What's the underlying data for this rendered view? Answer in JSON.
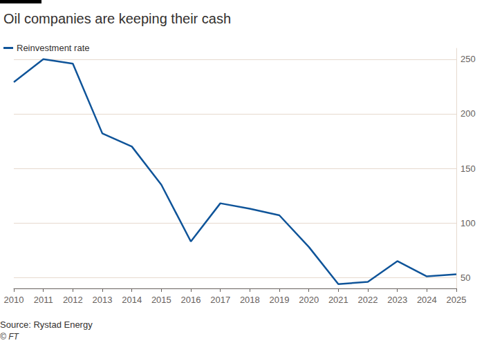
{
  "chart_data": {
    "type": "line",
    "title": "Oil companies are keeping their cash",
    "annotations": [
      "Source: Rystad Energy",
      "© FT"
    ],
    "categories": [
      "2010",
      "2011",
      "2012",
      "2013",
      "2014",
      "2015",
      "2016",
      "2017",
      "2018",
      "2019",
      "2020",
      "2021",
      "2022",
      "2023",
      "2024",
      "2025"
    ],
    "series": [
      {
        "name": "Reinvestment rate",
        "color": "#0f5499",
        "values": [
          229,
          250,
          246,
          182,
          170,
          135,
          83,
          118,
          113,
          107,
          78,
          44,
          46,
          65,
          51,
          53
        ]
      }
    ],
    "ylim": [
      40,
      260
    ],
    "yticks": [
      50,
      100,
      150,
      200,
      250
    ],
    "grid": true,
    "legend": "top-left"
  }
}
